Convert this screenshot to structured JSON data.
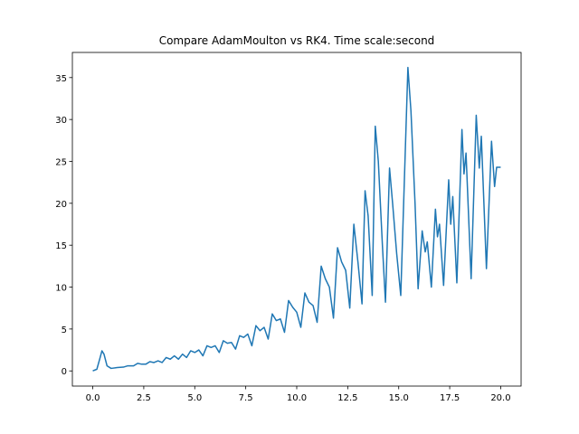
{
  "chart_data": {
    "type": "line",
    "title": "Compare AdamMoulton vs RK4. Time scale:second",
    "xlim": [
      -1.0,
      21.0
    ],
    "ylim": [
      -1.81,
      38.0
    ],
    "xticks": [
      {
        "value": 0,
        "label": "0.0"
      },
      {
        "value": 2.5,
        "label": "2.5"
      },
      {
        "value": 5,
        "label": "5.0"
      },
      {
        "value": 7.5,
        "label": "7.5"
      },
      {
        "value": 10,
        "label": "10.0"
      },
      {
        "value": 12.5,
        "label": "12.5"
      },
      {
        "value": 15,
        "label": "15.0"
      },
      {
        "value": 17.5,
        "label": "17.5"
      },
      {
        "value": 20,
        "label": "20.0"
      }
    ],
    "yticks": [
      0,
      5,
      10,
      15,
      20,
      25,
      30,
      35
    ],
    "series": [
      {
        "color": "#1f77b4",
        "x": [
          0,
          0.2,
          0.35,
          0.45,
          0.55,
          0.7,
          0.9,
          1.2,
          1.5,
          1.7,
          2.0,
          2.2,
          2.4,
          2.6,
          2.8,
          3.0,
          3.2,
          3.4,
          3.6,
          3.8,
          4.0,
          4.2,
          4.4,
          4.6,
          4.8,
          5.0,
          5.2,
          5.4,
          5.6,
          5.8,
          6.0,
          6.2,
          6.4,
          6.6,
          6.8,
          7.0,
          7.2,
          7.4,
          7.6,
          7.8,
          8.0,
          8.2,
          8.4,
          8.6,
          8.8,
          9.0,
          9.2,
          9.4,
          9.6,
          9.8,
          10.0,
          10.2,
          10.4,
          10.6,
          10.8,
          11.0,
          11.2,
          11.4,
          11.6,
          11.8,
          12.0,
          12.2,
          12.4,
          12.6,
          12.8,
          13.0,
          13.2,
          13.35,
          13.5,
          13.7,
          13.85,
          14.0,
          14.2,
          14.35,
          14.55,
          14.7,
          14.9,
          15.1,
          15.45,
          15.6,
          15.8,
          15.95,
          16.15,
          16.3,
          16.4,
          16.6,
          16.8,
          16.9,
          17.0,
          17.2,
          17.45,
          17.55,
          17.65,
          17.85,
          18.1,
          18.2,
          18.3,
          18.55,
          18.8,
          18.95,
          19.05,
          19.3,
          19.55,
          19.7,
          19.8,
          20.0
        ],
        "values": [
          0,
          0.2,
          1.5,
          2.4,
          2.0,
          0.6,
          0.3,
          0.4,
          0.45,
          0.6,
          0.6,
          0.9,
          0.8,
          0.8,
          1.1,
          1.0,
          1.2,
          1.0,
          1.6,
          1.4,
          1.8,
          1.4,
          2.0,
          1.6,
          2.4,
          2.2,
          2.5,
          1.8,
          3.0,
          2.8,
          3.0,
          2.2,
          3.6,
          3.3,
          3.4,
          2.6,
          4.2,
          4.0,
          4.4,
          3.0,
          5.4,
          4.8,
          5.2,
          3.8,
          6.8,
          6.0,
          6.2,
          4.6,
          8.4,
          7.6,
          7.0,
          5.2,
          9.3,
          8.2,
          7.8,
          5.8,
          12.5,
          11.0,
          10.0,
          6.3,
          14.7,
          13.0,
          12.0,
          7.5,
          17.5,
          13.0,
          8.0,
          21.5,
          18.5,
          9.0,
          29.2,
          25.0,
          15.0,
          8.2,
          24.2,
          20.0,
          14.0,
          9.0,
          36.2,
          31.0,
          20.0,
          9.8,
          16.7,
          14.2,
          15.4,
          10.0,
          19.3,
          16.0,
          17.5,
          10.2,
          22.8,
          17.5,
          20.8,
          10.5,
          28.8,
          23.5,
          26.0,
          11.0,
          30.5,
          24.2,
          28.0,
          12.2,
          27.4,
          22.0,
          24.3,
          24.3
        ]
      }
    ]
  }
}
